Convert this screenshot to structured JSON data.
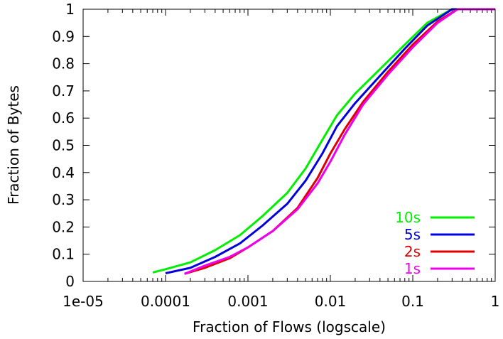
{
  "chart_data": {
    "type": "line",
    "title": "",
    "xlabel": "Fraction of Flows (logscale)",
    "ylabel": "Fraction of Bytes",
    "xscale": "log",
    "xlim": [
      1e-05,
      1
    ],
    "ylim": [
      0,
      1
    ],
    "x_ticks": [
      1e-05,
      0.0001,
      0.001,
      0.01,
      0.1,
      1
    ],
    "x_tick_labels": [
      "1e-05",
      "0.0001",
      "0.001",
      "0.01",
      "0.1",
      "1"
    ],
    "y_ticks": [
      0,
      0.1,
      0.2,
      0.3,
      0.4,
      0.5,
      0.6,
      0.7,
      0.8,
      0.9,
      1
    ],
    "y_tick_labels": [
      "0",
      "0.1",
      "0.2",
      "0.3",
      "0.4",
      "0.5",
      "0.6",
      "0.7",
      "0.8",
      "0.9",
      "1"
    ],
    "legend_position": "bottom-right",
    "series": [
      {
        "name": "10s",
        "color": "#00ee00",
        "points": [
          [
            7e-05,
            0.033
          ],
          [
            0.0001,
            0.045
          ],
          [
            0.0002,
            0.07
          ],
          [
            0.0004,
            0.115
          ],
          [
            0.0008,
            0.17
          ],
          [
            0.0015,
            0.24
          ],
          [
            0.003,
            0.325
          ],
          [
            0.005,
            0.415
          ],
          [
            0.008,
            0.52
          ],
          [
            0.012,
            0.61
          ],
          [
            0.02,
            0.69
          ],
          [
            0.04,
            0.78
          ],
          [
            0.08,
            0.87
          ],
          [
            0.15,
            0.95
          ],
          [
            0.3,
            1.0
          ],
          [
            1,
            1.0
          ]
        ]
      },
      {
        "name": "5s",
        "color": "#0000dd",
        "points": [
          [
            0.0001,
            0.03
          ],
          [
            0.0002,
            0.05
          ],
          [
            0.0004,
            0.09
          ],
          [
            0.0008,
            0.14
          ],
          [
            0.0015,
            0.205
          ],
          [
            0.003,
            0.285
          ],
          [
            0.005,
            0.37
          ],
          [
            0.008,
            0.47
          ],
          [
            0.012,
            0.57
          ],
          [
            0.02,
            0.655
          ],
          [
            0.04,
            0.755
          ],
          [
            0.08,
            0.855
          ],
          [
            0.15,
            0.94
          ],
          [
            0.3,
            1.0
          ],
          [
            1,
            1.0
          ]
        ]
      },
      {
        "name": "2s",
        "color": "#dd0000",
        "points": [
          [
            0.00017,
            0.028
          ],
          [
            0.0003,
            0.05
          ],
          [
            0.0006,
            0.085
          ],
          [
            0.001,
            0.125
          ],
          [
            0.002,
            0.185
          ],
          [
            0.004,
            0.27
          ],
          [
            0.007,
            0.38
          ],
          [
            0.01,
            0.47
          ],
          [
            0.015,
            0.56
          ],
          [
            0.025,
            0.66
          ],
          [
            0.05,
            0.77
          ],
          [
            0.1,
            0.87
          ],
          [
            0.2,
            0.955
          ],
          [
            0.35,
            1.0
          ],
          [
            1,
            1.0
          ]
        ]
      },
      {
        "name": "1s",
        "color": "#ee00ee",
        "points": [
          [
            0.00017,
            0.028
          ],
          [
            0.0003,
            0.058
          ],
          [
            0.0006,
            0.09
          ],
          [
            0.001,
            0.125
          ],
          [
            0.002,
            0.185
          ],
          [
            0.004,
            0.265
          ],
          [
            0.007,
            0.36
          ],
          [
            0.01,
            0.44
          ],
          [
            0.015,
            0.54
          ],
          [
            0.025,
            0.65
          ],
          [
            0.05,
            0.76
          ],
          [
            0.1,
            0.86
          ],
          [
            0.2,
            0.95
          ],
          [
            0.35,
            1.0
          ],
          [
            1,
            1.0
          ]
        ]
      }
    ]
  }
}
